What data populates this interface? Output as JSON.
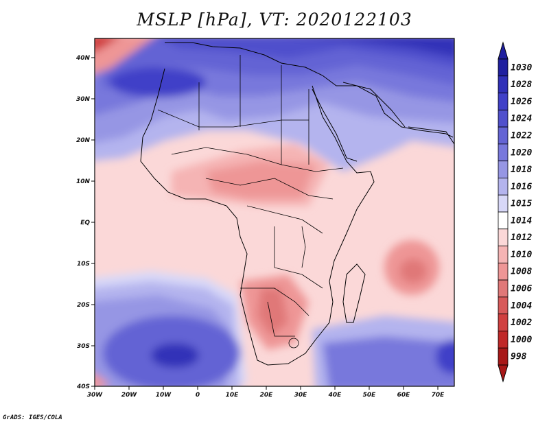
{
  "title": "MSLP [hPa], VT: 2020122103",
  "credit": "GrADS: IGES/COLA",
  "map": {
    "variable": "Mean sea level pressure",
    "units": "hPa",
    "lat_range": [
      -40,
      45
    ],
    "lon_range": [
      -30,
      75
    ],
    "lat_ticks": [
      "40N",
      "30N",
      "20N",
      "10N",
      "EQ",
      "10S",
      "20S",
      "30S",
      "40S"
    ],
    "lon_ticks": [
      "30W",
      "20W",
      "10W",
      "0",
      "10E",
      "20E",
      "30E",
      "40E",
      "50E",
      "60E",
      "70E"
    ]
  },
  "colorbar": {
    "levels": [
      "1030",
      "1028",
      "1026",
      "1024",
      "1022",
      "1020",
      "1018",
      "1016",
      "1015",
      "1014",
      "1012",
      "1010",
      "1008",
      "1006",
      "1004",
      "1002",
      "1000",
      "998"
    ],
    "colors": [
      "#2020a0",
      "#3030b8",
      "#4040c8",
      "#5050cc",
      "#6464d4",
      "#7878dc",
      "#9696e4",
      "#b4b4ee",
      "#d8d8f8",
      "#ffffff",
      "#fbd8d8",
      "#f5b4b4",
      "#ee9696",
      "#e07878",
      "#d85a5a",
      "#d04040",
      "#c02828",
      "#a81818"
    ]
  }
}
